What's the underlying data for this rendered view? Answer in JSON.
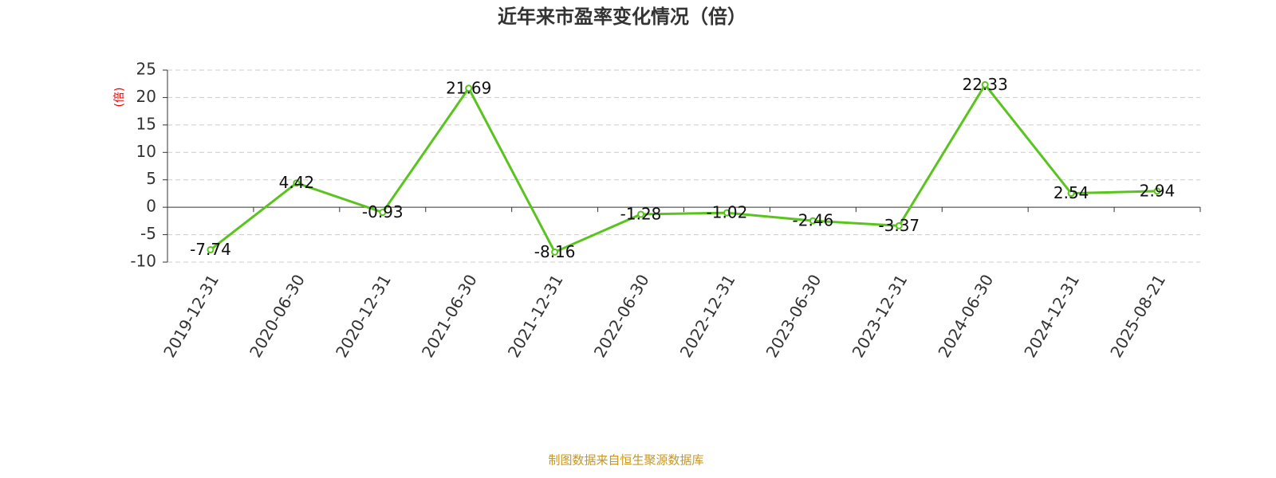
{
  "chart_data": {
    "type": "line",
    "title": "近年来市盈率变化情况（倍）",
    "y_label": "(倍)",
    "categories": [
      "2019-12-31",
      "2020-06-30",
      "2020-12-31",
      "2021-06-30",
      "2021-12-31",
      "2022-06-30",
      "2022-12-31",
      "2023-06-30",
      "2023-12-31",
      "2024-06-30",
      "2024-12-31",
      "2025-08-21"
    ],
    "series": [
      {
        "name": "市盈率",
        "color": "#5ac41f",
        "values": [
          -7.74,
          4.42,
          -0.93,
          21.69,
          -8.16,
          -1.28,
          -1.02,
          -2.46,
          -3.37,
          22.33,
          2.54,
          2.94
        ]
      }
    ],
    "ylim": [
      -10,
      25
    ],
    "yticks": [
      -10,
      -5,
      0,
      5,
      10,
      15,
      20,
      25
    ],
    "grid": true,
    "source": "制图数据来自恒生聚源数据库"
  }
}
